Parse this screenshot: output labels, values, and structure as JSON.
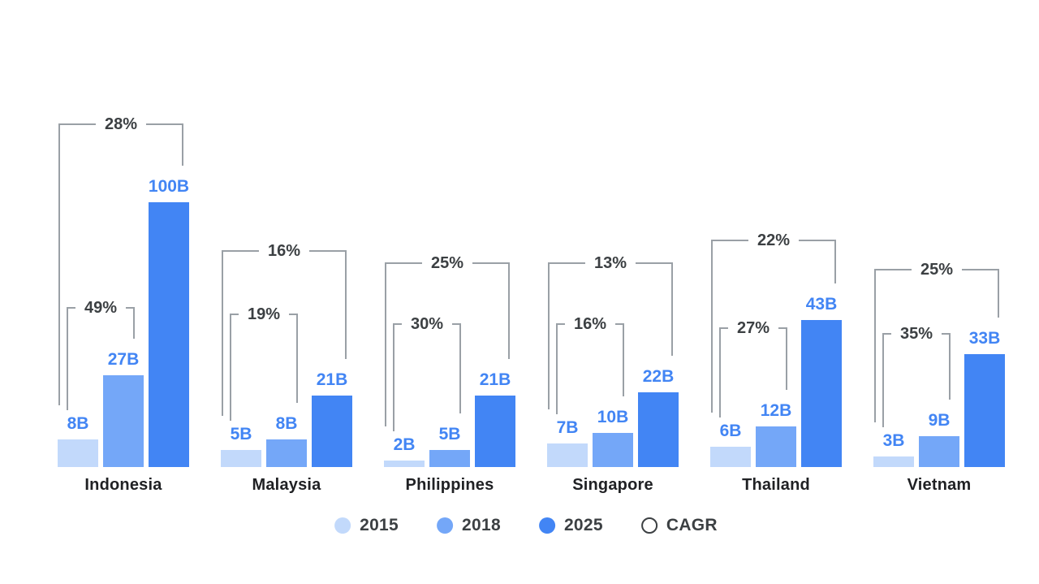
{
  "chart_data": {
    "type": "bar",
    "categories": [
      "Indonesia",
      "Malaysia",
      "Philippines",
      "Singapore",
      "Thailand",
      "Vietnam"
    ],
    "series": [
      {
        "name": "2015",
        "color": "#c2d9fb",
        "values": [
          8,
          5,
          2,
          7,
          6,
          3
        ]
      },
      {
        "name": "2018",
        "color": "#74a7f8",
        "values": [
          27,
          8,
          5,
          10,
          12,
          9
        ]
      },
      {
        "name": "2025",
        "color": "#4285f4",
        "values": [
          100,
          21,
          21,
          22,
          43,
          33
        ]
      }
    ],
    "value_suffix": "B",
    "cagr": {
      "name": "CAGR",
      "suffix": "%",
      "inner": {
        "from": "2015",
        "to": "2018",
        "values": [
          49,
          19,
          30,
          16,
          27,
          35
        ]
      },
      "outer": {
        "from": "2015",
        "to": "2025",
        "values": [
          28,
          16,
          25,
          13,
          22,
          25
        ]
      }
    },
    "legend": [
      {
        "label": "2015"
      },
      {
        "label": "2018"
      },
      {
        "label": "2025"
      },
      {
        "label": "CAGR"
      }
    ],
    "legend_position": "bottom",
    "grid": false,
    "axes_visible": false,
    "ylim": [
      0,
      100
    ],
    "colors": {
      "value_label": "#4285f4",
      "cagr_label": "#3c4043",
      "bracket_line": "#9aa0a6",
      "category_label": "#202124",
      "legend_text": "#3c4043",
      "background": "#ffffff"
    }
  }
}
